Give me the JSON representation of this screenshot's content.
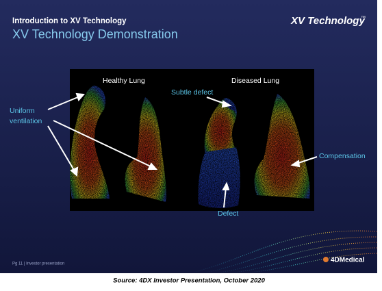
{
  "header": {
    "subtitle": "Introduction to XV Technology",
    "title": "XV Technology Demonstration",
    "logo": "XV Technology",
    "logo_mark": "™"
  },
  "figure": {
    "healthy_label": "Healthy Lung",
    "diseased_label": "Diseased Lung",
    "annotations": {
      "uniform": [
        "Uniform",
        "ventilation"
      ],
      "subtle_defect": "Subtle defect",
      "compensation": "Compensation",
      "defect": "Defect"
    }
  },
  "footer": {
    "page": "Pg 11 | Investor presentation",
    "brand": "4DMedical"
  },
  "caption": "Source: 4DX Investor Presentation, October 2020"
}
